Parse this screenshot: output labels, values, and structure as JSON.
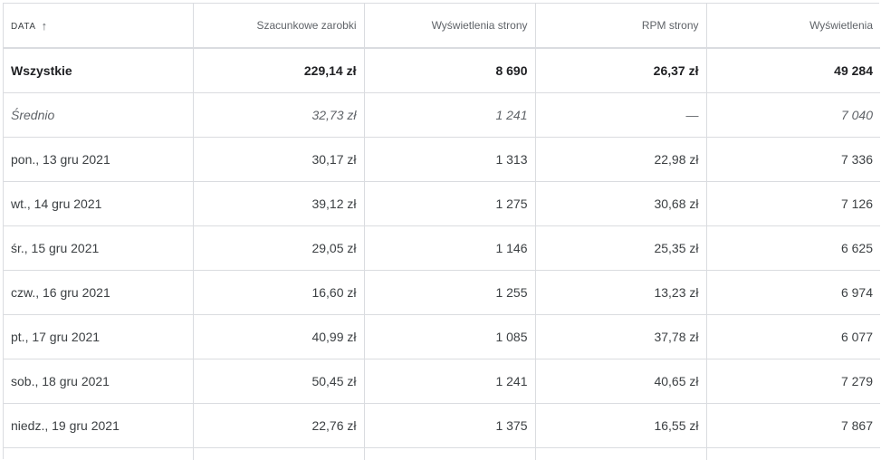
{
  "table": {
    "headers": {
      "date": "DATA",
      "sort_arrow": "↑",
      "earnings": "Szacunkowe zarobki",
      "page_views": "Wyświetlenia strony",
      "page_rpm": "RPM strony",
      "impressions": "Wyświetlenia"
    },
    "total": {
      "label": "Wszystkie",
      "earnings": "229,14 zł",
      "page_views": "8 690",
      "page_rpm": "26,37 zł",
      "impressions": "49 284"
    },
    "average": {
      "label": "Średnio",
      "earnings": "32,73 zł",
      "page_views": "1 241",
      "page_rpm": "—",
      "impressions": "7 040"
    },
    "rows": [
      {
        "date": "pon., 13 gru 2021",
        "earnings": "30,17 zł",
        "page_views": "1 313",
        "page_rpm": "22,98 zł",
        "impressions": "7 336"
      },
      {
        "date": "wt., 14 gru 2021",
        "earnings": "39,12 zł",
        "page_views": "1 275",
        "page_rpm": "30,68 zł",
        "impressions": "7 126"
      },
      {
        "date": "śr., 15 gru 2021",
        "earnings": "29,05 zł",
        "page_views": "1 146",
        "page_rpm": "25,35 zł",
        "impressions": "6 625"
      },
      {
        "date": "czw., 16 gru 2021",
        "earnings": "16,60 zł",
        "page_views": "1 255",
        "page_rpm": "13,23 zł",
        "impressions": "6 974"
      },
      {
        "date": "pt., 17 gru 2021",
        "earnings": "40,99 zł",
        "page_views": "1 085",
        "page_rpm": "37,78 zł",
        "impressions": "6 077"
      },
      {
        "date": "sob., 18 gru 2021",
        "earnings": "50,45 zł",
        "page_views": "1 241",
        "page_rpm": "40,65 zł",
        "impressions": "7 279"
      },
      {
        "date": "niedz., 19 gru 2021",
        "earnings": "22,76 zł",
        "page_views": "1 375",
        "page_rpm": "16,55 zł",
        "impressions": "7 867"
      }
    ]
  }
}
